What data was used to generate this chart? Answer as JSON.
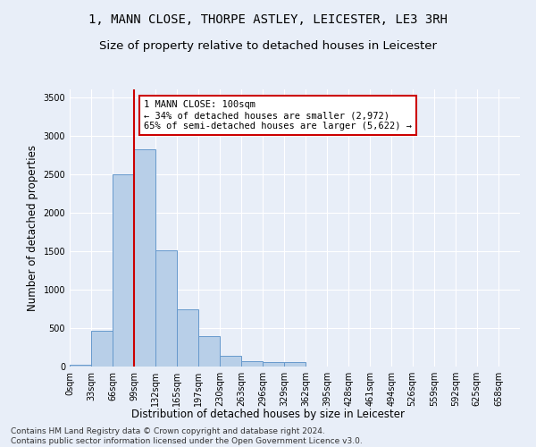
{
  "title": "1, MANN CLOSE, THORPE ASTLEY, LEICESTER, LE3 3RH",
  "subtitle": "Size of property relative to detached houses in Leicester",
  "xlabel": "Distribution of detached houses by size in Leicester",
  "ylabel": "Number of detached properties",
  "bar_color": "#b8cfe8",
  "bar_edge_color": "#6699cc",
  "background_color": "#e8eef8",
  "grid_color": "#ffffff",
  "annotation_box_color": "#cc0000",
  "annotation_text": "1 MANN CLOSE: 100sqm\n← 34% of detached houses are smaller (2,972)\n65% of semi-detached houses are larger (5,622) →",
  "property_line_x": 99,
  "categories": [
    "0sqm",
    "33sqm",
    "66sqm",
    "99sqm",
    "132sqm",
    "165sqm",
    "197sqm",
    "230sqm",
    "263sqm",
    "296sqm",
    "329sqm",
    "362sqm",
    "395sqm",
    "428sqm",
    "461sqm",
    "494sqm",
    "526sqm",
    "559sqm",
    "592sqm",
    "625sqm",
    "658sqm"
  ],
  "values": [
    20,
    470,
    2500,
    2820,
    1510,
    740,
    390,
    140,
    70,
    55,
    55,
    5,
    5,
    0,
    0,
    0,
    0,
    0,
    0,
    0,
    0
  ],
  "bin_width": 33,
  "bin_starts": [
    0,
    33,
    66,
    99,
    132,
    165,
    197,
    230,
    263,
    296,
    329,
    362,
    395,
    428,
    461,
    494,
    526,
    559,
    592,
    625,
    658
  ],
  "ylim": [
    0,
    3600
  ],
  "yticks": [
    0,
    500,
    1000,
    1500,
    2000,
    2500,
    3000,
    3500
  ],
  "title_fontsize": 10,
  "subtitle_fontsize": 9.5,
  "axis_label_fontsize": 8.5,
  "tick_fontsize": 7,
  "annotation_fontsize": 7.5,
  "footer_text": "Contains HM Land Registry data © Crown copyright and database right 2024.\nContains public sector information licensed under the Open Government Licence v3.0.",
  "footer_fontsize": 6.5
}
